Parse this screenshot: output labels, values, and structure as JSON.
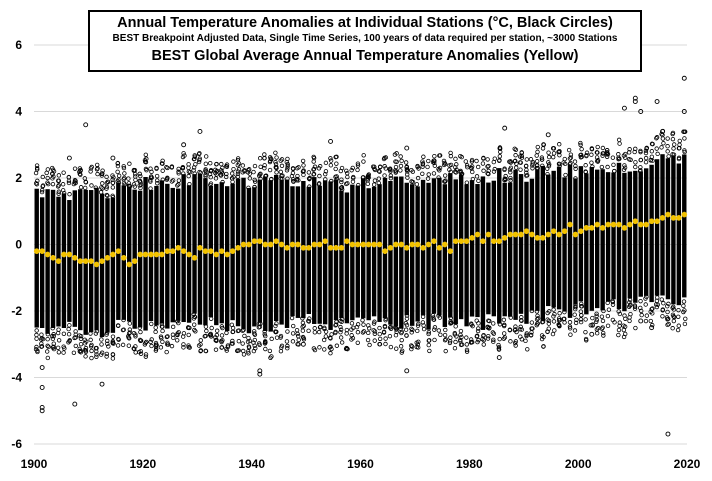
{
  "chart_data": {
    "type": "scatter",
    "title": "Annual Temperature Anomalies at Individual Stations (°C, Black Circles)",
    "subtitle": "BEST Breakpoint Adjusted Data, Single Time Series, 100 years of data required per station, ~3000 Stations",
    "title2": "BEST Global Average Annual Temperature Anomalies (Yellow)",
    "xlim": [
      1900,
      2020
    ],
    "ylim": [
      -6,
      6
    ],
    "xticks": [
      "1900",
      "1920",
      "1940",
      "1960",
      "1980",
      "2000",
      "2020"
    ],
    "yticks": [
      "-6",
      "-4",
      "-2",
      "0",
      "2",
      "4",
      "6"
    ],
    "grid": true,
    "station_band": {
      "x": [
        1900,
        1910,
        1920,
        1930,
        1940,
        1950,
        1960,
        1970,
        1980,
        1990,
        2000,
        2010,
        2019
      ],
      "upper": [
        1.6,
        1.5,
        1.8,
        2.0,
        1.9,
        1.8,
        1.8,
        1.8,
        2.0,
        2.1,
        2.2,
        2.4,
        2.6
      ],
      "lower": [
        -2.4,
        -2.6,
        -2.4,
        -2.3,
        -2.5,
        -2.3,
        -2.4,
        -2.3,
        -2.4,
        -2.2,
        -1.9,
        -1.8,
        -1.7
      ]
    },
    "station_outliers": [
      {
        "x": 1901,
        "y": -4.3
      },
      {
        "x": 1901,
        "y": -4.9
      },
      {
        "x": 1901,
        "y": -5.0
      },
      {
        "x": 1901,
        "y": -3.7
      },
      {
        "x": 1903,
        "y": -3.1
      },
      {
        "x": 1907,
        "y": -4.8
      },
      {
        "x": 1909,
        "y": 3.6
      },
      {
        "x": 1912,
        "y": -4.2
      },
      {
        "x": 1914,
        "y": 2.6
      },
      {
        "x": 1906,
        "y": 2.6
      },
      {
        "x": 1930,
        "y": 3.4
      },
      {
        "x": 1927,
        "y": 3.0
      },
      {
        "x": 1941,
        "y": -3.8
      },
      {
        "x": 1941,
        "y": -3.9
      },
      {
        "x": 1949,
        "y": -3.0
      },
      {
        "x": 1954,
        "y": 3.1
      },
      {
        "x": 1968,
        "y": -3.8
      },
      {
        "x": 1968,
        "y": 2.9
      },
      {
        "x": 1986,
        "y": 3.5
      },
      {
        "x": 1985,
        "y": -3.4
      },
      {
        "x": 1994,
        "y": 3.3
      },
      {
        "x": 2008,
        "y": 4.1
      },
      {
        "x": 2010,
        "y": 4.3
      },
      {
        "x": 2010,
        "y": 4.4
      },
      {
        "x": 2011,
        "y": 4.0
      },
      {
        "x": 2014,
        "y": 4.3
      },
      {
        "x": 2015,
        "y": 3.4
      },
      {
        "x": 2016,
        "y": -5.7
      },
      {
        "x": 2019,
        "y": 5.0
      },
      {
        "x": 2019,
        "y": 4.0
      },
      {
        "x": 2011,
        "y": -2.3
      },
      {
        "x": 2002,
        "y": -2.7
      },
      {
        "x": 2013,
        "y": -2.5
      }
    ],
    "series": [
      {
        "color": "#f2c200",
        "x": [
          1900,
          1901,
          1902,
          1903,
          1904,
          1905,
          1906,
          1907,
          1908,
          1909,
          1910,
          1911,
          1912,
          1913,
          1914,
          1915,
          1916,
          1917,
          1918,
          1919,
          1920,
          1921,
          1922,
          1923,
          1924,
          1925,
          1926,
          1927,
          1928,
          1929,
          1930,
          1931,
          1932,
          1933,
          1934,
          1935,
          1936,
          1937,
          1938,
          1939,
          1940,
          1941,
          1942,
          1943,
          1944,
          1945,
          1946,
          1947,
          1948,
          1949,
          1950,
          1951,
          1952,
          1953,
          1954,
          1955,
          1956,
          1957,
          1958,
          1959,
          1960,
          1961,
          1962,
          1963,
          1964,
          1965,
          1966,
          1967,
          1968,
          1969,
          1970,
          1971,
          1972,
          1973,
          1974,
          1975,
          1976,
          1977,
          1978,
          1979,
          1980,
          1981,
          1982,
          1983,
          1984,
          1985,
          1986,
          1987,
          1988,
          1989,
          1990,
          1991,
          1992,
          1993,
          1994,
          1995,
          1996,
          1997,
          1998,
          1999,
          2000,
          2001,
          2002,
          2003,
          2004,
          2005,
          2006,
          2007,
          2008,
          2009,
          2010,
          2011,
          2012,
          2013,
          2014,
          2015,
          2016,
          2017,
          2018,
          2019
        ],
        "values": [
          -0.2,
          -0.2,
          -0.3,
          -0.4,
          -0.5,
          -0.3,
          -0.3,
          -0.4,
          -0.5,
          -0.5,
          -0.5,
          -0.6,
          -0.5,
          -0.4,
          -0.3,
          -0.2,
          -0.4,
          -0.6,
          -0.5,
          -0.3,
          -0.3,
          -0.3,
          -0.3,
          -0.3,
          -0.2,
          -0.2,
          -0.1,
          -0.2,
          -0.3,
          -0.4,
          -0.1,
          -0.2,
          -0.2,
          -0.3,
          -0.2,
          -0.3,
          -0.2,
          -0.1,
          0.0,
          0.0,
          0.1,
          0.1,
          0.0,
          0.0,
          0.1,
          0.0,
          -0.1,
          0.0,
          0.0,
          -0.1,
          -0.1,
          0.0,
          0.0,
          0.1,
          -0.1,
          -0.1,
          -0.1,
          0.1,
          0.0,
          0.0,
          0.0,
          0.0,
          0.0,
          0.0,
          -0.2,
          -0.1,
          0.0,
          0.0,
          -0.1,
          0.0,
          0.0,
          -0.1,
          0.0,
          0.1,
          -0.1,
          0.0,
          -0.2,
          0.1,
          0.1,
          0.1,
          0.2,
          0.3,
          0.1,
          0.3,
          0.1,
          0.1,
          0.2,
          0.3,
          0.3,
          0.3,
          0.4,
          0.3,
          0.2,
          0.2,
          0.3,
          0.4,
          0.3,
          0.4,
          0.6,
          0.3,
          0.4,
          0.5,
          0.5,
          0.6,
          0.5,
          0.6,
          0.6,
          0.6,
          0.5,
          0.6,
          0.7,
          0.6,
          0.6,
          0.7,
          0.7,
          0.8,
          0.9,
          0.8,
          0.8,
          0.9
        ]
      }
    ]
  }
}
